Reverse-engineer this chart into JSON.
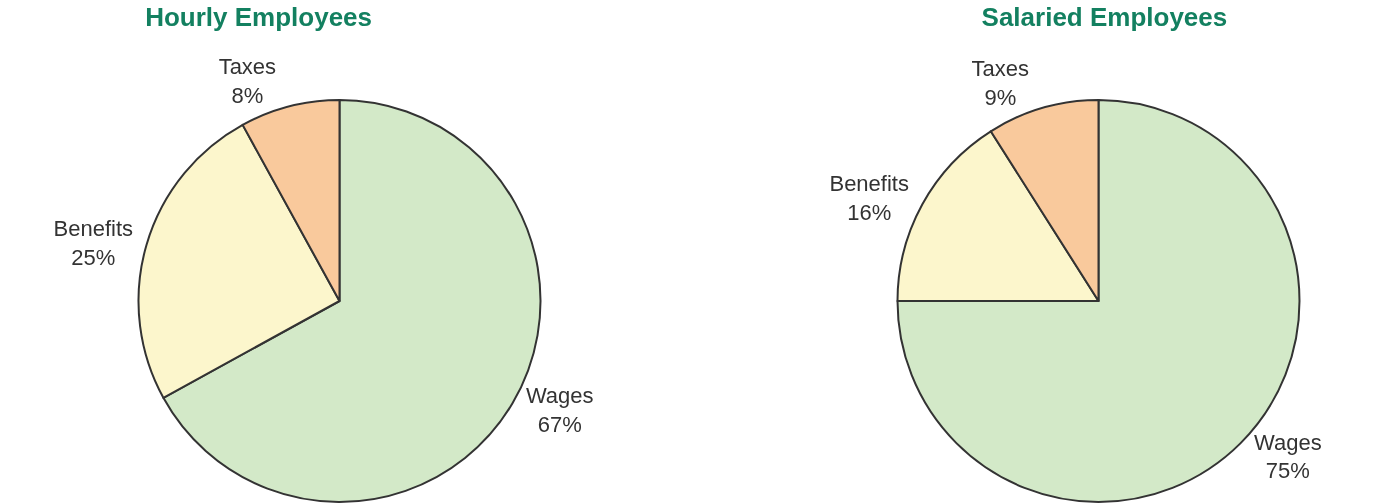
{
  "chart_data": [
    {
      "type": "pie",
      "title": "Hourly Employees",
      "categories": [
        "Wages",
        "Benefits",
        "Taxes"
      ],
      "values": [
        67,
        25,
        8
      ],
      "value_labels": [
        "67%",
        "25%",
        "8%"
      ],
      "colors": [
        "#d3e9c8",
        "#fcf6cc",
        "#f9c99c"
      ],
      "legend": false
    },
    {
      "type": "pie",
      "title": "Salaried Employees",
      "categories": [
        "Wages",
        "Benefits",
        "Taxes"
      ],
      "values": [
        75,
        16,
        9
      ],
      "value_labels": [
        "75%",
        "16%",
        "9%"
      ],
      "colors": [
        "#d3e9c8",
        "#fcf6cc",
        "#f9c99c"
      ],
      "legend": false
    }
  ]
}
